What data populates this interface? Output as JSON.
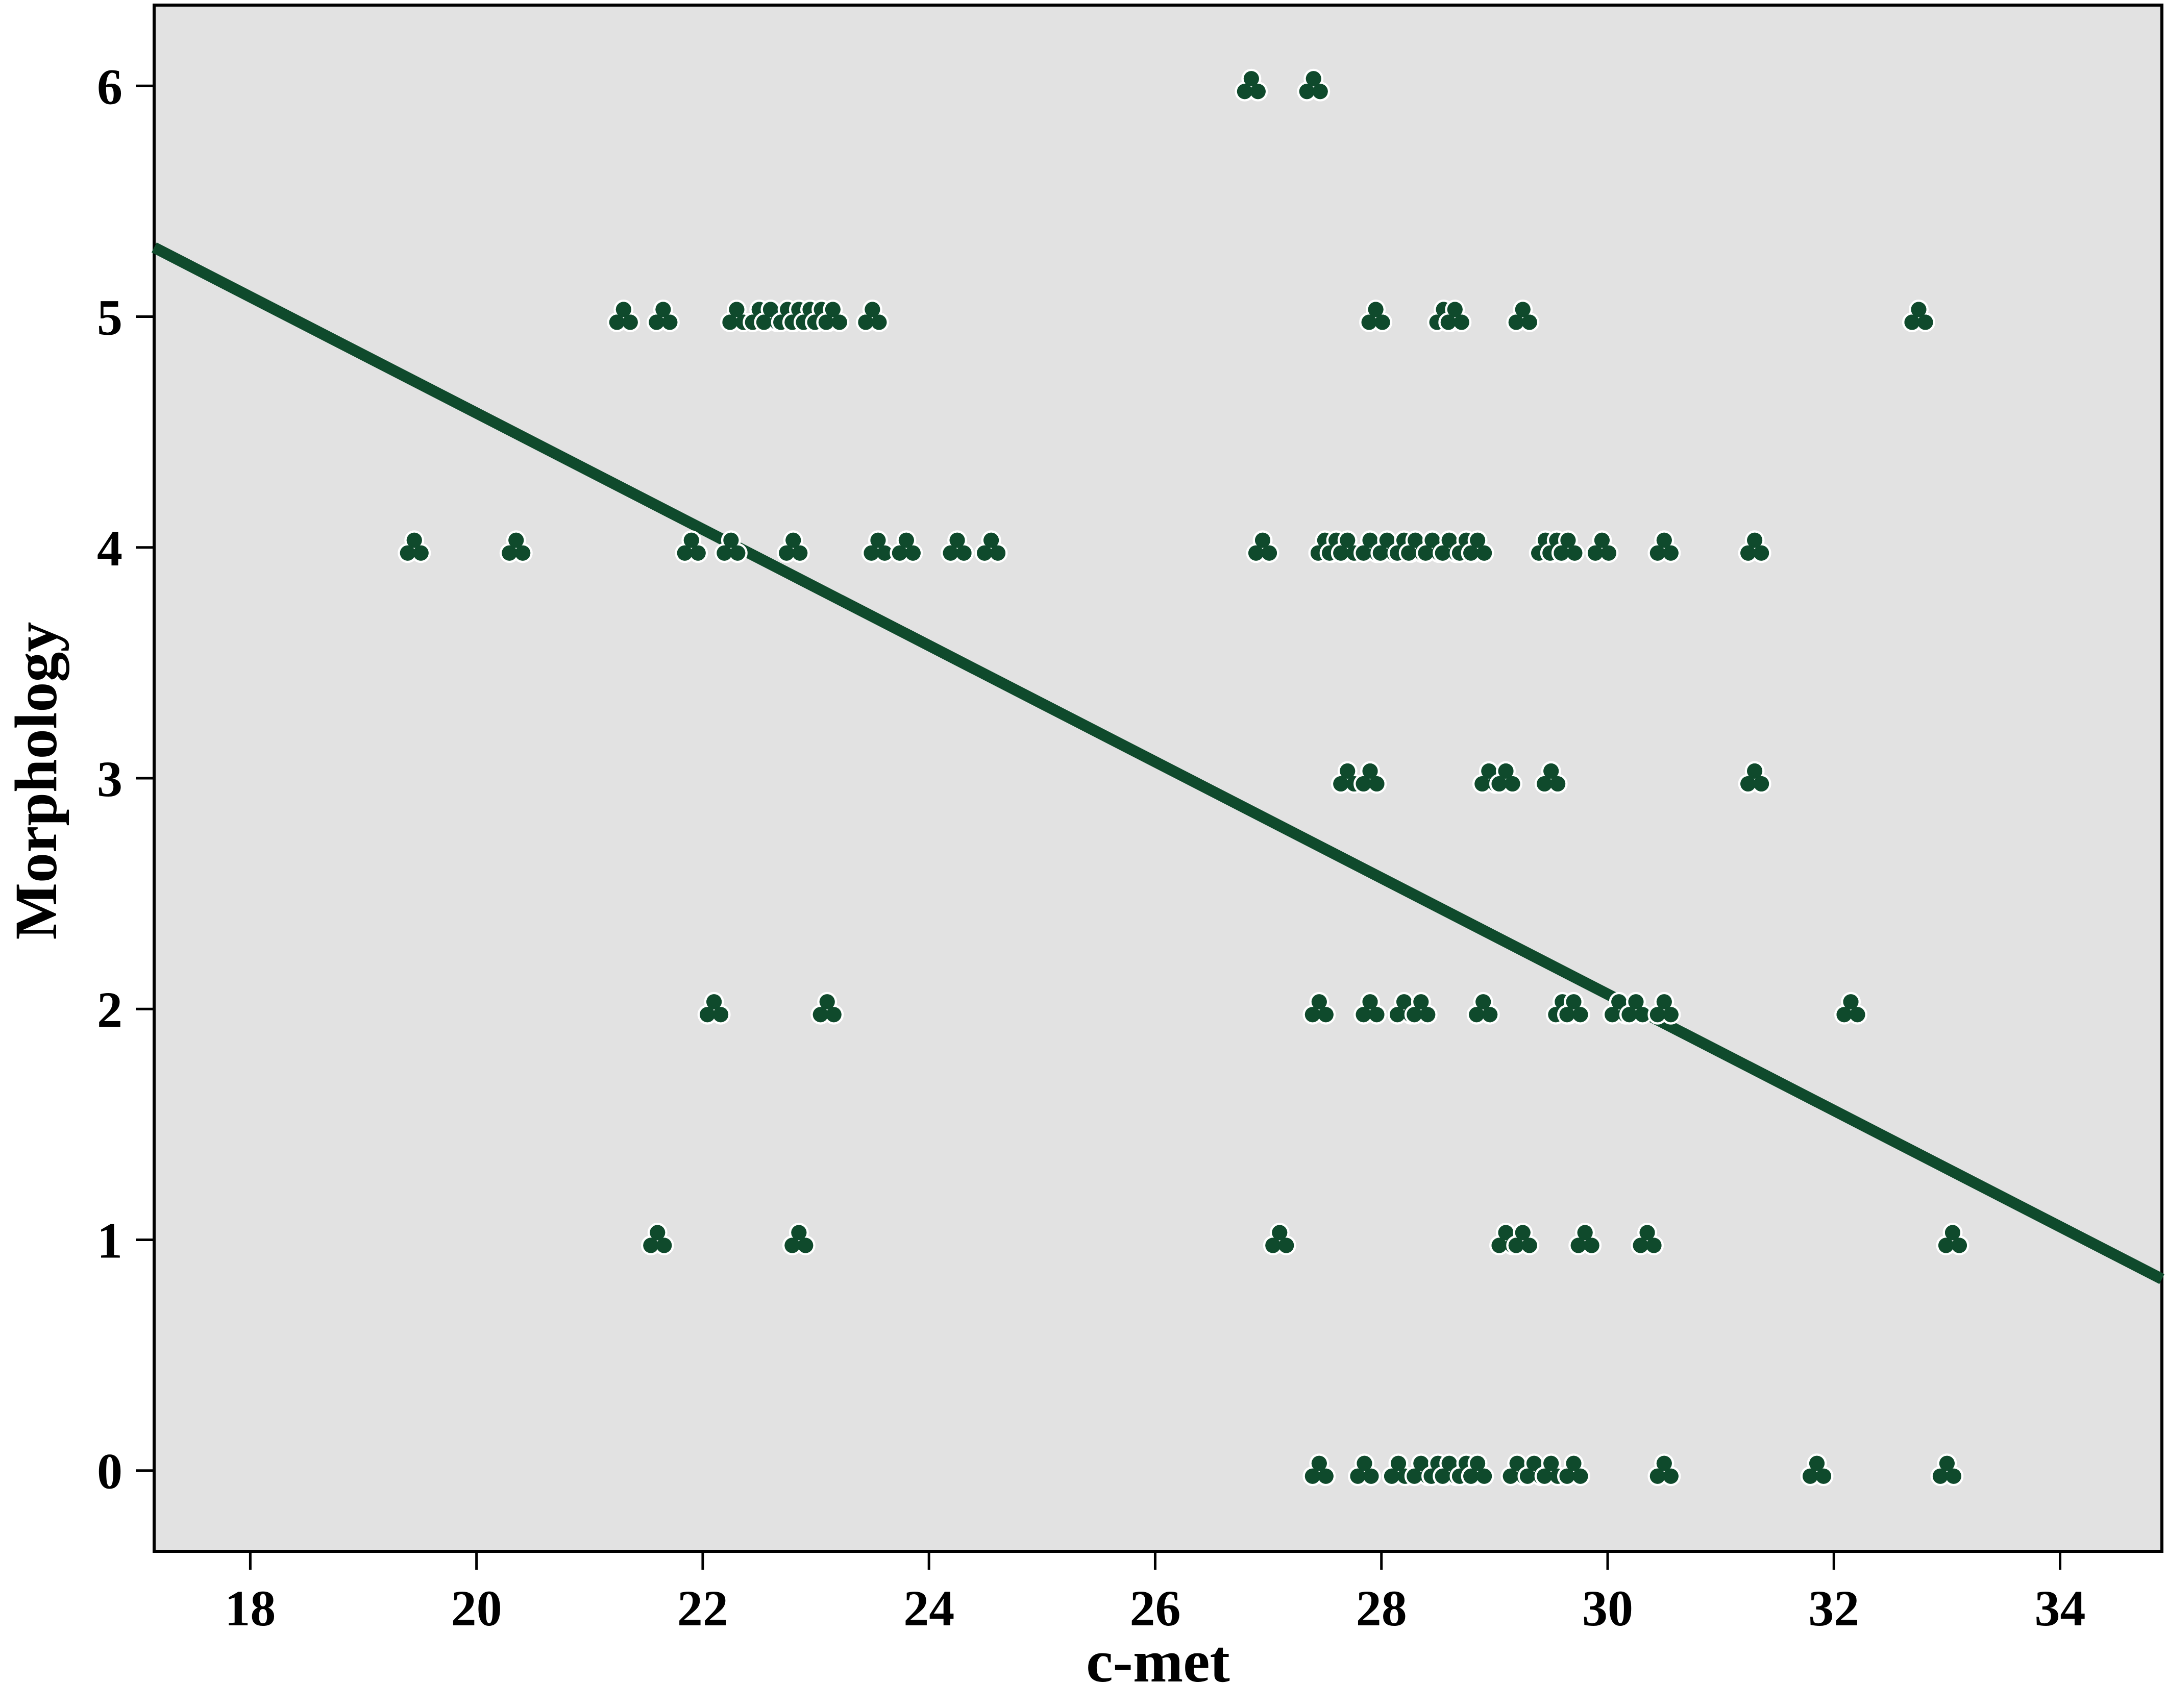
{
  "chart_data": {
    "type": "scatter",
    "xlabel": "c-met",
    "ylabel": "Morphology",
    "xlim": [
      17.15,
      34.9
    ],
    "ylim": [
      -0.35,
      6.35
    ],
    "xticks": [
      18,
      20,
      22,
      24,
      26,
      28,
      30,
      32,
      34
    ],
    "yticks": [
      0,
      1,
      2,
      3,
      4,
      5,
      6
    ],
    "grid": false,
    "colors": {
      "plot_background": "#e2e2e2",
      "marker": "#0f4a2c",
      "marker_halo": "#ffffff",
      "fit_line": "#0f4a2c"
    },
    "marker_shape": "trefoil",
    "fit_line": {
      "x": [
        17.15,
        34.9
      ],
      "y": [
        5.3,
        0.83
      ]
    },
    "series": [
      {
        "points": [
          [
            26.85,
            6
          ],
          [
            27.4,
            6
          ],
          [
            21.3,
            5
          ],
          [
            21.65,
            5
          ],
          [
            22.3,
            5
          ],
          [
            22.5,
            5
          ],
          [
            22.6,
            5
          ],
          [
            22.75,
            5
          ],
          [
            22.85,
            5
          ],
          [
            22.95,
            5
          ],
          [
            23.05,
            5
          ],
          [
            23.15,
            5
          ],
          [
            23.5,
            5
          ],
          [
            27.95,
            5
          ],
          [
            28.55,
            5
          ],
          [
            28.65,
            5
          ],
          [
            29.25,
            5
          ],
          [
            32.75,
            5
          ],
          [
            19.45,
            4
          ],
          [
            20.35,
            4
          ],
          [
            21.9,
            4
          ],
          [
            22.25,
            4
          ],
          [
            22.8,
            4
          ],
          [
            23.55,
            4
          ],
          [
            23.8,
            4
          ],
          [
            24.25,
            4
          ],
          [
            24.55,
            4
          ],
          [
            26.95,
            4
          ],
          [
            27.5,
            4
          ],
          [
            27.6,
            4
          ],
          [
            27.7,
            4
          ],
          [
            27.9,
            4
          ],
          [
            28.05,
            4
          ],
          [
            28.2,
            4
          ],
          [
            28.3,
            4
          ],
          [
            28.45,
            4
          ],
          [
            28.6,
            4
          ],
          [
            28.75,
            4
          ],
          [
            28.85,
            4
          ],
          [
            29.45,
            4
          ],
          [
            29.55,
            4
          ],
          [
            29.65,
            4
          ],
          [
            29.95,
            4
          ],
          [
            30.5,
            4
          ],
          [
            31.3,
            4
          ],
          [
            27.7,
            3
          ],
          [
            27.9,
            3
          ],
          [
            28.95,
            3
          ],
          [
            29.1,
            3
          ],
          [
            29.5,
            3
          ],
          [
            31.3,
            3
          ],
          [
            22.1,
            2
          ],
          [
            23.1,
            2
          ],
          [
            27.45,
            2
          ],
          [
            27.9,
            2
          ],
          [
            28.2,
            2
          ],
          [
            28.35,
            2
          ],
          [
            28.9,
            2
          ],
          [
            29.6,
            2
          ],
          [
            29.7,
            2
          ],
          [
            30.1,
            2
          ],
          [
            30.25,
            2
          ],
          [
            30.5,
            2
          ],
          [
            32.15,
            2
          ],
          [
            21.6,
            1
          ],
          [
            22.85,
            1
          ],
          [
            27.1,
            1
          ],
          [
            29.1,
            1
          ],
          [
            29.25,
            1
          ],
          [
            29.8,
            1
          ],
          [
            30.35,
            1
          ],
          [
            33.05,
            1
          ],
          [
            27.45,
            0
          ],
          [
            27.85,
            0
          ],
          [
            28.15,
            0
          ],
          [
            28.35,
            0
          ],
          [
            28.5,
            0
          ],
          [
            28.6,
            0
          ],
          [
            28.75,
            0
          ],
          [
            28.85,
            0
          ],
          [
            29.2,
            0
          ],
          [
            29.35,
            0
          ],
          [
            29.5,
            0
          ],
          [
            29.7,
            0
          ],
          [
            30.5,
            0
          ],
          [
            31.85,
            0
          ],
          [
            33.0,
            0
          ]
        ]
      }
    ]
  }
}
